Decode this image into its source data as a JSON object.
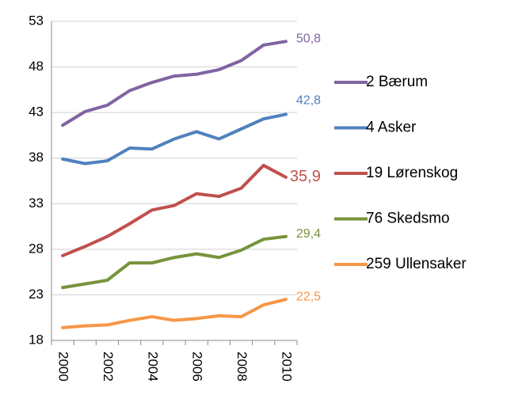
{
  "chart_data": {
    "type": "line",
    "categories": [
      "2000",
      null,
      "2002",
      null,
      "2004",
      null,
      "2006",
      null,
      "2008",
      null,
      "2010"
    ],
    "ylim": [
      18,
      53
    ],
    "yticks": [
      18,
      23,
      28,
      33,
      38,
      43,
      48,
      53
    ],
    "grid": true,
    "legend": "right",
    "series": [
      {
        "name": "2 Bærum",
        "color": "#8064a2",
        "values": [
          41.6,
          43.1,
          43.8,
          45.4,
          46.3,
          47.0,
          47.2,
          47.7,
          48.7,
          50.4,
          50.8
        ],
        "value_labels": [
          null,
          null,
          null,
          null,
          null,
          null,
          null,
          null,
          null,
          null,
          "50,8"
        ]
      },
      {
        "name": "4 Asker",
        "color": "#4f81bd",
        "values": [
          37.9,
          37.4,
          37.7,
          39.1,
          39.0,
          40.1,
          40.9,
          40.1,
          41.2,
          42.3,
          42.8
        ],
        "value_labels": [
          null,
          null,
          null,
          null,
          null,
          null,
          null,
          null,
          null,
          null,
          "42,8"
        ]
      },
      {
        "name": "19 Lørenskog",
        "color": "#c0504d",
        "values": [
          27.3,
          28.3,
          29.4,
          30.8,
          32.3,
          32.8,
          34.1,
          33.8,
          34.7,
          37.2,
          35.9
        ],
        "value_labels": [
          null,
          null,
          null,
          null,
          null,
          null,
          null,
          null,
          null,
          null,
          "35,9"
        ]
      },
      {
        "name": "76 Skedsmo",
        "color": "#77933c",
        "values": [
          23.8,
          24.2,
          24.6,
          26.5,
          26.5,
          27.1,
          27.5,
          27.1,
          27.9,
          29.1,
          29.4
        ],
        "value_labels": [
          null,
          null,
          null,
          null,
          null,
          null,
          null,
          null,
          null,
          null,
          "29,4"
        ]
      },
      {
        "name": "259 Ullensaker",
        "color": "#f79646",
        "values": [
          19.4,
          19.6,
          19.7,
          20.2,
          20.6,
          20.2,
          20.4,
          20.7,
          20.6,
          21.9,
          22.5
        ],
        "value_labels": [
          null,
          null,
          null,
          null,
          null,
          null,
          null,
          null,
          null,
          null,
          "22,5"
        ]
      }
    ]
  }
}
